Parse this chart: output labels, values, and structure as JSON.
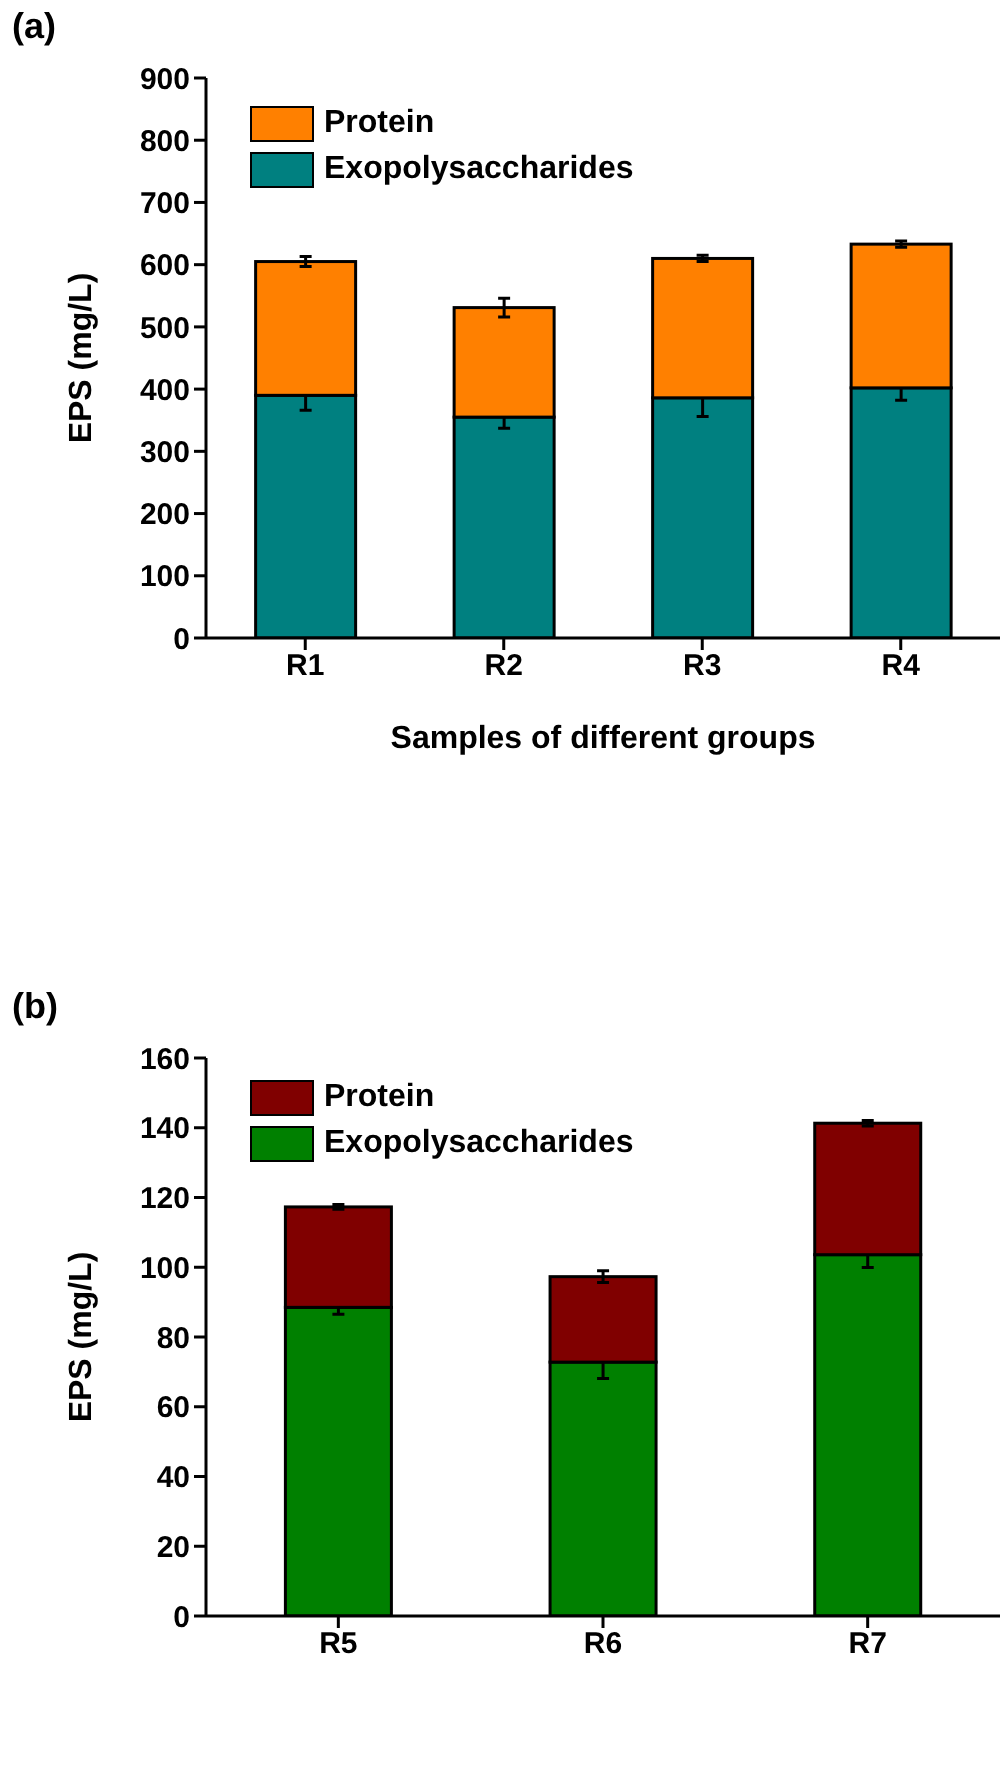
{
  "chart_data": [
    {
      "type": "bar",
      "title": "(a)",
      "xlabel": "Samples of different groups",
      "ylabel": "EPS (mg/L)",
      "categories": [
        "R1",
        "R2",
        "R3",
        "R4"
      ],
      "stacked": true,
      "ylim": [
        0,
        900
      ],
      "yticks": [
        0,
        100,
        200,
        300,
        400,
        500,
        600,
        700,
        800,
        900
      ],
      "legend": "top left",
      "grid": false,
      "series": [
        {
          "name": "Exopolysaccharides",
          "color": "#008080",
          "values": [
            390,
            355,
            386,
            402
          ],
          "errors": [
            24,
            18,
            30,
            20
          ]
        },
        {
          "name": "Protein",
          "color": "#ff8000",
          "values": [
            215,
            176,
            224,
            231
          ],
          "errors": [
            8,
            15,
            5,
            5
          ]
        }
      ]
    },
    {
      "type": "bar",
      "title": "(b)",
      "ylabel": "EPS (mg/L)",
      "categories": [
        "R5",
        "R6",
        "R7"
      ],
      "stacked": true,
      "ylim": [
        0,
        160
      ],
      "yticks": [
        0,
        20,
        40,
        60,
        80,
        100,
        120,
        140,
        160
      ],
      "legend": "top left",
      "grid": false,
      "series": [
        {
          "name": "Exopolysaccharides",
          "color": "#008000",
          "values": [
            88.5,
            72.8,
            103.6
          ],
          "errors": [
            2,
            4.7,
            3.7
          ]
        },
        {
          "name": "Protein",
          "color": "#800000",
          "values": [
            28.8,
            24.5,
            37.7
          ],
          "errors": [
            0.7,
            1.7,
            0.8
          ]
        }
      ]
    }
  ]
}
